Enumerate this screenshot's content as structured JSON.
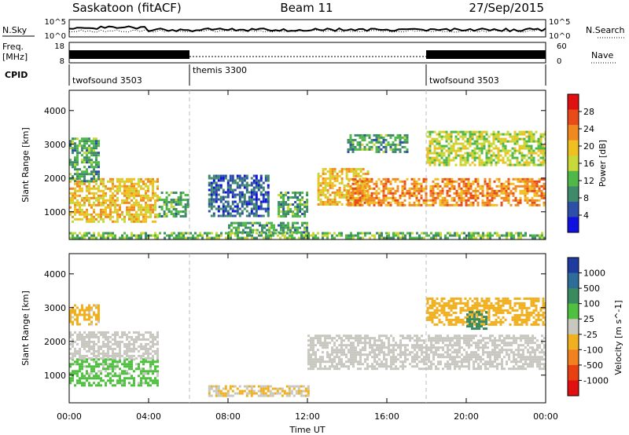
{
  "header": {
    "station": "Saskatoon (fitACF)",
    "beam": "Beam 11",
    "date": "27/Sep/2015"
  },
  "noise_panel": {
    "left_label": "N.Sky",
    "left_ticks": [
      "10^5",
      "10^0"
    ],
    "right_ticks": [
      "10^5",
      "10^0"
    ],
    "right_label": "N.Search",
    "right_label_style": "dotted"
  },
  "freq_panel": {
    "left_label_1": "Freq.",
    "left_label_2": "[MHz]",
    "left_ticks": [
      "18",
      "8"
    ],
    "right_ticks": [
      "60",
      "0"
    ],
    "right_label": "Nave",
    "right_label_style": "dotted"
  },
  "cpid_panel": {
    "label": "CPID",
    "segments": [
      {
        "name": "twofsound 3503",
        "start_hour": 0,
        "end_hour": 6
      },
      {
        "name": "themis 3300",
        "start_hour": 6,
        "end_hour": 18
      },
      {
        "name": "twofsound 3503",
        "start_hour": 18,
        "end_hour": 24
      }
    ]
  },
  "x_axis": {
    "label": "Time UT",
    "tick_labels": [
      "00:00",
      "04:00",
      "08:00",
      "12:00",
      "16:00",
      "20:00",
      "00:00"
    ],
    "range_hours": [
      0,
      24
    ]
  },
  "chart_data": [
    {
      "type": "heatmap",
      "parameter": "Power",
      "ylabel": "Slant Range [km]",
      "ylim": [
        180,
        4600
      ],
      "y_ticks": [
        "1000",
        "2000",
        "3000",
        "4000"
      ],
      "colorbar_label": "Power [dB]",
      "colorbar_ticks": [
        "4",
        "8",
        "12",
        "16",
        "20",
        "24",
        "28"
      ],
      "colorbar_range": [
        0,
        32
      ],
      "colors": [
        "#1010e0",
        "#2d4fa8",
        "#3f8a6a",
        "#50b848",
        "#c8d838",
        "#f0c020",
        "#f08a20",
        "#e84a18",
        "#e01010"
      ],
      "echo_regions": [
        {
          "x": [
            0,
            4.5
          ],
          "y": [
            700,
            2000
          ],
          "value": 20
        },
        {
          "x": [
            0,
            1.5
          ],
          "y": [
            1900,
            3200
          ],
          "value": 10
        },
        {
          "x": [
            4.5,
            6
          ],
          "y": [
            900,
            1600
          ],
          "value": 10
        },
        {
          "x": [
            7,
            10
          ],
          "y": [
            900,
            2100
          ],
          "value": 5
        },
        {
          "x": [
            8,
            12
          ],
          "y": [
            400,
            700
          ],
          "value": 10
        },
        {
          "x": [
            10.5,
            12
          ],
          "y": [
            900,
            1600
          ],
          "value": 10
        },
        {
          "x": [
            12.5,
            15
          ],
          "y": [
            1200,
            2300
          ],
          "value": 20
        },
        {
          "x": [
            14,
            24
          ],
          "y": [
            1200,
            2000
          ],
          "value": 24
        },
        {
          "x": [
            14,
            17
          ],
          "y": [
            2800,
            3300
          ],
          "value": 10
        },
        {
          "x": [
            18,
            24
          ],
          "y": [
            2400,
            3400
          ],
          "value": 16
        },
        {
          "x": [
            0,
            24
          ],
          "y": [
            180,
            400
          ],
          "value": 12
        }
      ]
    },
    {
      "type": "heatmap",
      "parameter": "Velocity",
      "ylabel": "Slant Range [km]",
      "ylim": [
        180,
        4600
      ],
      "y_ticks": [
        "1000",
        "2000",
        "3000",
        "4000"
      ],
      "colorbar_label": "Velocity [m s^-1]",
      "colorbar_ticks": [
        "1000",
        "500",
        "100",
        "25",
        "-25",
        "-100",
        "-500",
        "-1000"
      ],
      "colorbar_range": [
        -1200,
        1200
      ],
      "colors": [
        "#1e3ca0",
        "#2e6c9a",
        "#3a8a60",
        "#50c040",
        "#c8c8c0",
        "#f0b020",
        "#f08020",
        "#e84010",
        "#e01010"
      ],
      "ground_scatter_color": "#c8c8c0",
      "echo_regions": [
        {
          "x": [
            0,
            4.5
          ],
          "y": [
            700,
            1500
          ],
          "value": 200
        },
        {
          "x": [
            0,
            4.5
          ],
          "y": [
            1500,
            2300
          ],
          "value": 0
        },
        {
          "x": [
            0,
            1.5
          ],
          "y": [
            2500,
            3100
          ],
          "value": -200
        },
        {
          "x": [
            7,
            12
          ],
          "y": [
            400,
            700
          ],
          "value": -150
        },
        {
          "x": [
            12,
            24
          ],
          "y": [
            1200,
            2200
          ],
          "value": 0
        },
        {
          "x": [
            18,
            24
          ],
          "y": [
            2500,
            3300
          ],
          "value": -300
        },
        {
          "x": [
            20,
            21
          ],
          "y": [
            2400,
            2900
          ],
          "value": 600
        }
      ]
    }
  ]
}
